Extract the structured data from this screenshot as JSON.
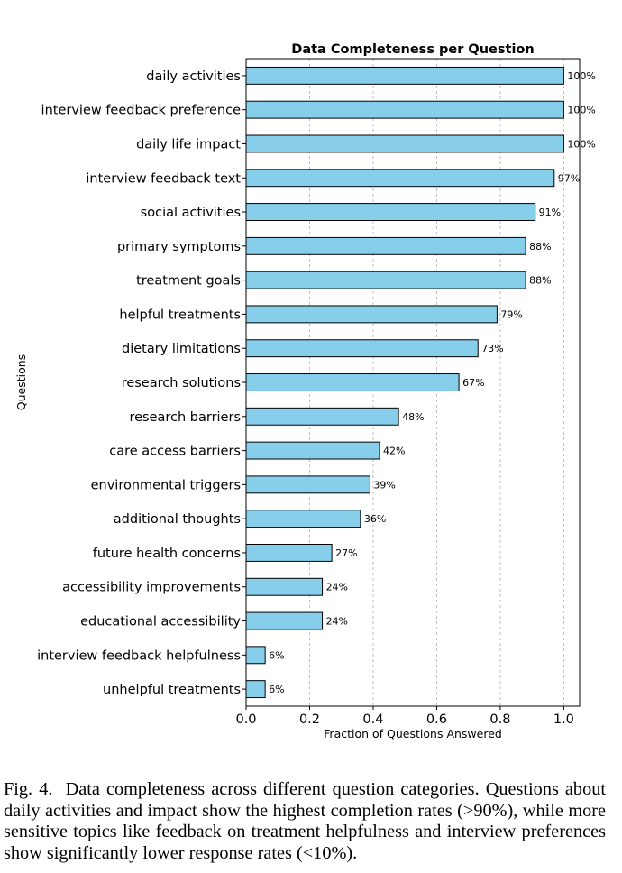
{
  "chart_data": {
    "type": "bar",
    "orientation": "horizontal",
    "title": "Data Completeness per Question",
    "xlabel": "Fraction of Questions Answered",
    "ylabel": "Questions",
    "xlim": [
      0,
      1.05
    ],
    "xticks": [
      "0.0",
      "0.2",
      "0.4",
      "0.6",
      "0.8",
      "1.0"
    ],
    "grid": "x-dashed",
    "bar_color": "#87CEEB",
    "edge_color": "#000000",
    "categories": [
      "daily activities",
      "interview feedback preference",
      "daily life impact",
      "interview feedback text",
      "social activities",
      "primary symptoms",
      "treatment goals",
      "helpful treatments",
      "dietary limitations",
      "research solutions",
      "research barriers",
      "care access barriers",
      "environmental triggers",
      "additional thoughts",
      "future health concerns",
      "accessibility improvements",
      "educational accessibility",
      "interview feedback helpfulness",
      "unhelpful treatments"
    ],
    "values": [
      1.0,
      1.0,
      1.0,
      0.97,
      0.91,
      0.88,
      0.88,
      0.79,
      0.73,
      0.67,
      0.48,
      0.42,
      0.39,
      0.36,
      0.27,
      0.24,
      0.24,
      0.06,
      0.06
    ],
    "data_labels": [
      "100%",
      "100%",
      "100%",
      "97%",
      "91%",
      "88%",
      "88%",
      "79%",
      "73%",
      "67%",
      "48%",
      "42%",
      "39%",
      "36%",
      "27%",
      "24%",
      "24%",
      "6%",
      "6%"
    ]
  },
  "caption": {
    "label": "Fig. 4.",
    "text": "Data completeness across different question categories. Questions about daily activities and impact show the highest completion rates (>90%), while more sensitive topics like feedback on treatment helpfulness and interview preferences show significantly lower response rates (<10%)."
  }
}
